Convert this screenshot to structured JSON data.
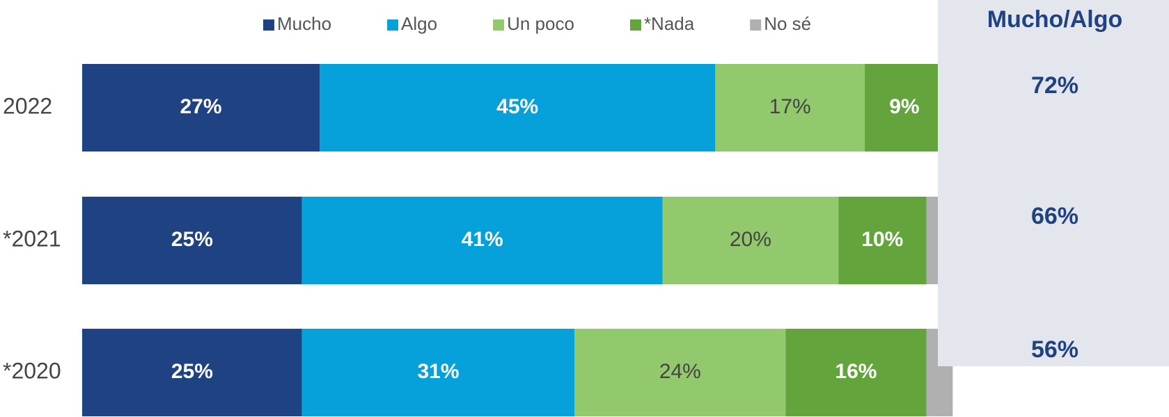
{
  "chart_data": {
    "type": "stacked-bar-horizontal",
    "categories": [
      "2022",
      "*2021",
      "*2020"
    ],
    "series": [
      {
        "name": "Mucho",
        "color": "#1f4283",
        "values": [
          27,
          25,
          25
        ],
        "value_labels": [
          "27%",
          "25%",
          "25%"
        ]
      },
      {
        "name": "Algo",
        "color": "#06a0db",
        "values": [
          45,
          41,
          31
        ],
        "value_labels": [
          "45%",
          "41%",
          "31%"
        ]
      },
      {
        "name": "Un poco",
        "color": "#92c96c",
        "values": [
          17,
          20,
          24
        ],
        "value_labels": [
          "17%",
          "20%",
          "24%"
        ]
      },
      {
        "name": "*Nada",
        "color": "#63a43c",
        "values": [
          9,
          10,
          16
        ],
        "value_labels": [
          "9%",
          "10%",
          "16%"
        ]
      },
      {
        "name": "No sé",
        "color": "#b0b0b0",
        "values": [
          2,
          4,
          3
        ]
      }
    ],
    "xlim": [
      0,
      100
    ],
    "summary": {
      "title": "Mucho/Algo",
      "values": [
        72,
        66,
        56
      ],
      "value_labels": [
        "72%",
        "66%",
        "56%"
      ]
    }
  }
}
